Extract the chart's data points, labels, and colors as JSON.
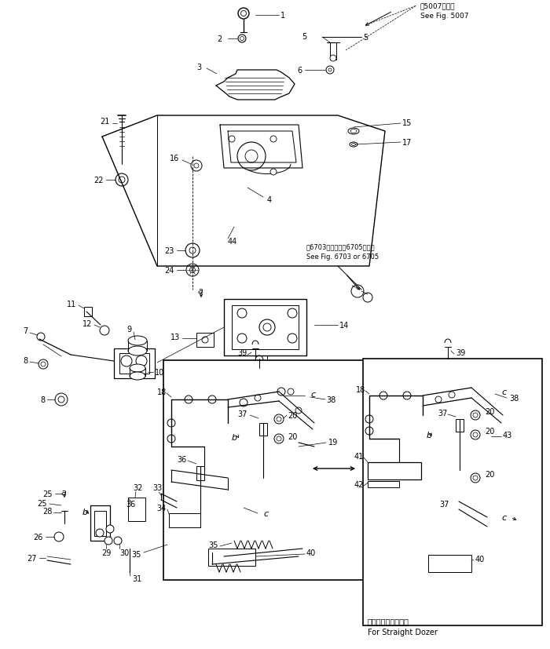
{
  "bg_color": "#ffffff",
  "line_color": "#000000",
  "fig_width": 7.0,
  "fig_height": 8.28,
  "dpi": 100,
  "annotations": {
    "fig5007_jp": "。5007図参照",
    "fig5007_en": "See Fig. 5007",
    "fig6703_jp": "。6703図または。6705図参照",
    "fig6703_en": "See Fig. 6703 or 6705",
    "straight_dozer_jp": "ストレートドーザ用",
    "straight_dozer_en": "For Straight Dozer"
  }
}
